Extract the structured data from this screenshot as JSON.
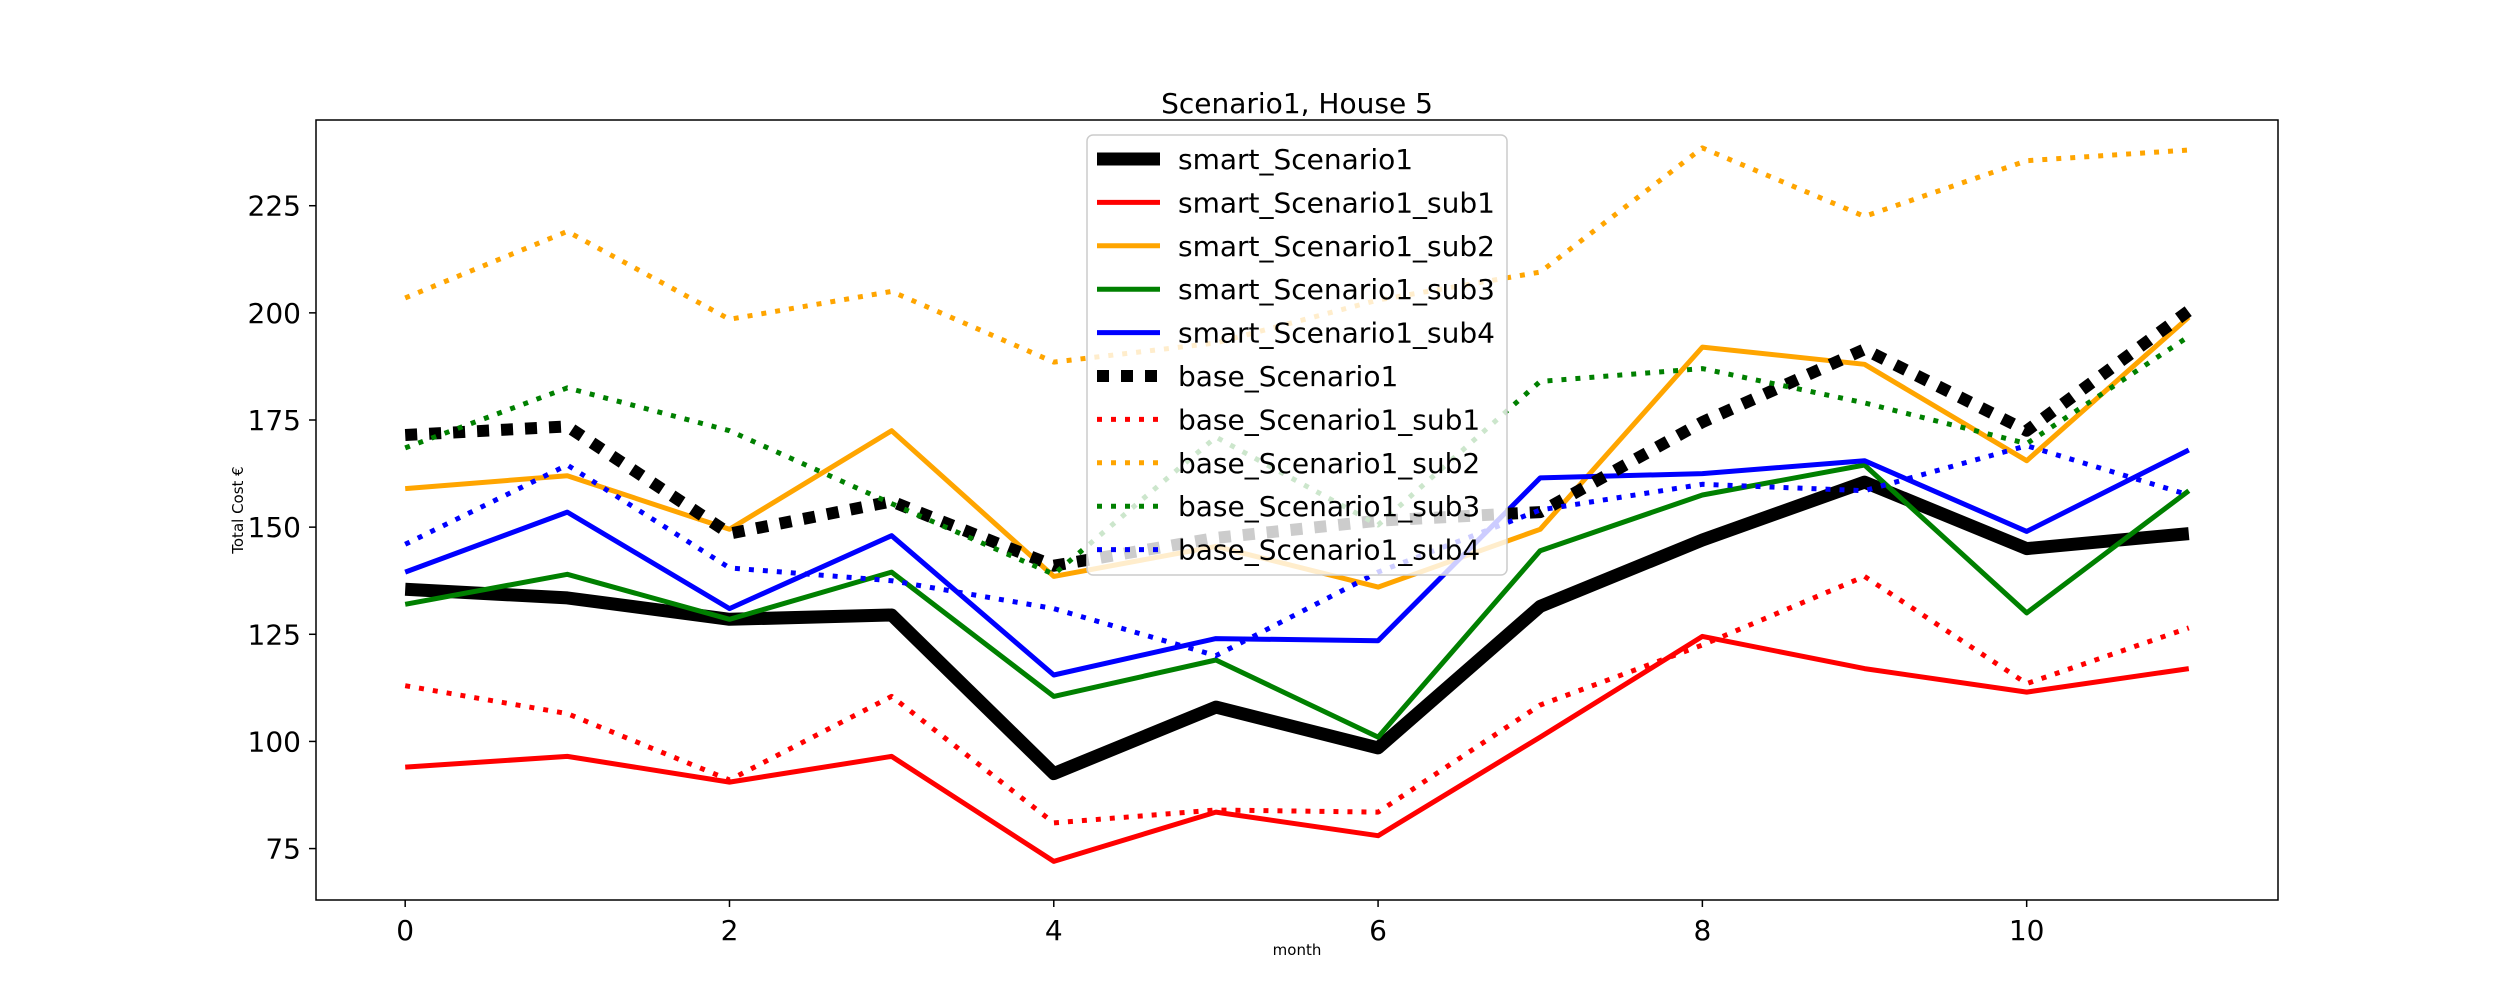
{
  "chart_data": {
    "type": "line",
    "title": "Scenario1, House 5",
    "xlabel": "month",
    "ylabel": "Total Cost €",
    "xlim": [
      -0.55,
      11.55
    ],
    "ylim": [
      63,
      245
    ],
    "xticks": [
      0,
      2,
      4,
      6,
      8,
      10
    ],
    "yticks": [
      75,
      100,
      125,
      150,
      175,
      200,
      225
    ],
    "grid": false,
    "legend_position": "upper center",
    "x": [
      0,
      1,
      2,
      3,
      4,
      5,
      6,
      7,
      8,
      9,
      10,
      11
    ],
    "series": [
      {
        "name": "smart_Scenario1",
        "color": "#000000",
        "style": "solid",
        "values": [
          135.5,
          133.5,
          128.5,
          129.5,
          92.5,
          108.0,
          98.5,
          131.5,
          147.0,
          160.5,
          145.0,
          148.5
        ]
      },
      {
        "name": "smart_Scenario1_sub1",
        "color": "#ff0000",
        "style": "solid",
        "values": [
          94.0,
          96.5,
          90.5,
          96.5,
          72.0,
          83.5,
          78.0,
          101.0,
          124.5,
          117.0,
          111.5,
          117.0
        ]
      },
      {
        "name": "smart_Scenario1_sub2",
        "color": "#ffa500",
        "style": "solid",
        "values": [
          159.0,
          162.0,
          149.5,
          172.5,
          138.5,
          145.5,
          136.0,
          149.5,
          192.0,
          188.0,
          165.5,
          199.0
        ]
      },
      {
        "name": "smart_Scenario1_sub3",
        "color": "#008000",
        "style": "solid",
        "values": [
          132.0,
          139.0,
          128.5,
          139.5,
          110.5,
          119.0,
          101.0,
          144.5,
          157.5,
          164.5,
          130.0,
          158.5
        ]
      },
      {
        "name": "smart_Scenario1_sub4",
        "color": "#0000ff",
        "style": "solid",
        "values": [
          139.5,
          153.5,
          131.0,
          148.0,
          115.5,
          124.0,
          123.5,
          161.5,
          162.5,
          165.5,
          149.0,
          168.0
        ]
      },
      {
        "name": "base_Scenario1",
        "color": "#000000",
        "style": "dotted",
        "values": [
          171.5,
          173.5,
          148.5,
          156.0,
          141.0,
          147.5,
          151.5,
          153.5,
          174.5,
          191.5,
          172.5,
          200.5
        ]
      },
      {
        "name": "base_Scenario1_sub1",
        "color": "#ff0000",
        "style": "dotted",
        "values": [
          113.0,
          106.5,
          91.0,
          110.5,
          81.0,
          84.0,
          83.5,
          108.5,
          122.5,
          138.5,
          113.5,
          126.5
        ]
      },
      {
        "name": "base_Scenario1_sub2",
        "color": "#ffa500",
        "style": "dotted",
        "values": [
          203.5,
          219.0,
          198.5,
          205.0,
          188.5,
          193.0,
          203.0,
          209.5,
          238.5,
          222.5,
          235.5,
          238.0
        ]
      },
      {
        "name": "base_Scenario1_sub3",
        "color": "#008000",
        "style": "dotted",
        "values": [
          168.5,
          182.5,
          172.5,
          155.5,
          139.0,
          171.0,
          150.5,
          184.0,
          187.0,
          179.0,
          169.5,
          194.5
        ]
      },
      {
        "name": "base_Scenario1_sub4",
        "color": "#0000ff",
        "style": "dotted",
        "values": [
          146.0,
          164.5,
          140.5,
          137.5,
          131.0,
          120.0,
          139.5,
          154.0,
          160.0,
          158.5,
          169.0,
          157.5
        ]
      }
    ]
  }
}
